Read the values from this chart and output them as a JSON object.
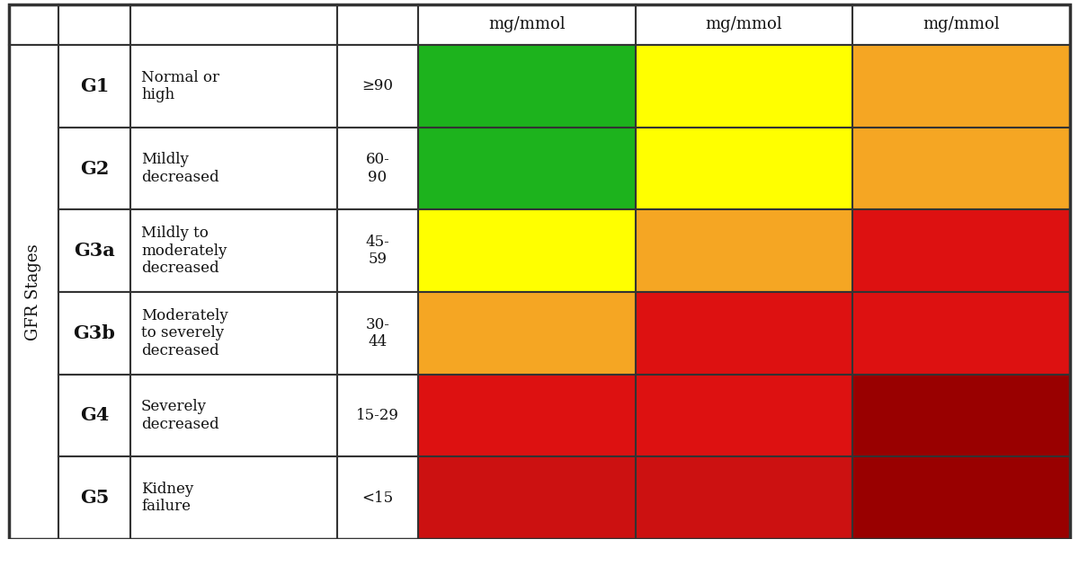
{
  "gfr_stages": [
    "G1",
    "G2",
    "G3a",
    "G3b",
    "G4",
    "G5"
  ],
  "descriptions": [
    "Normal or\nhigh",
    "Mildly\ndecreased",
    "Mildly to\nmoderately\ndecreased",
    "Moderately\nto severely\ndecreased",
    "Severely\ndecreased",
    "Kidney\nfailure"
  ],
  "ranges": [
    "≥90",
    "60-\n90",
    "45-\n59",
    "30-\n44",
    "15-29",
    "<15"
  ],
  "col_headers": [
    "mg/mmol",
    "mg/mmol",
    "mg/mmol"
  ],
  "cell_colors": [
    [
      "#1db31d",
      "#ffff00",
      "#f5a623"
    ],
    [
      "#1db31d",
      "#ffff00",
      "#f5a623"
    ],
    [
      "#ffff00",
      "#f5a623",
      "#dd1111"
    ],
    [
      "#f5a623",
      "#dd1111",
      "#dd1111"
    ],
    [
      "#dd1111",
      "#dd1111",
      "#990000"
    ],
    [
      "#cc1111",
      "#cc1111",
      "#990000"
    ]
  ],
  "ylabel": "GFR Stages",
  "background": "#ffffff",
  "border_color": "#333333",
  "text_color": "#111111"
}
